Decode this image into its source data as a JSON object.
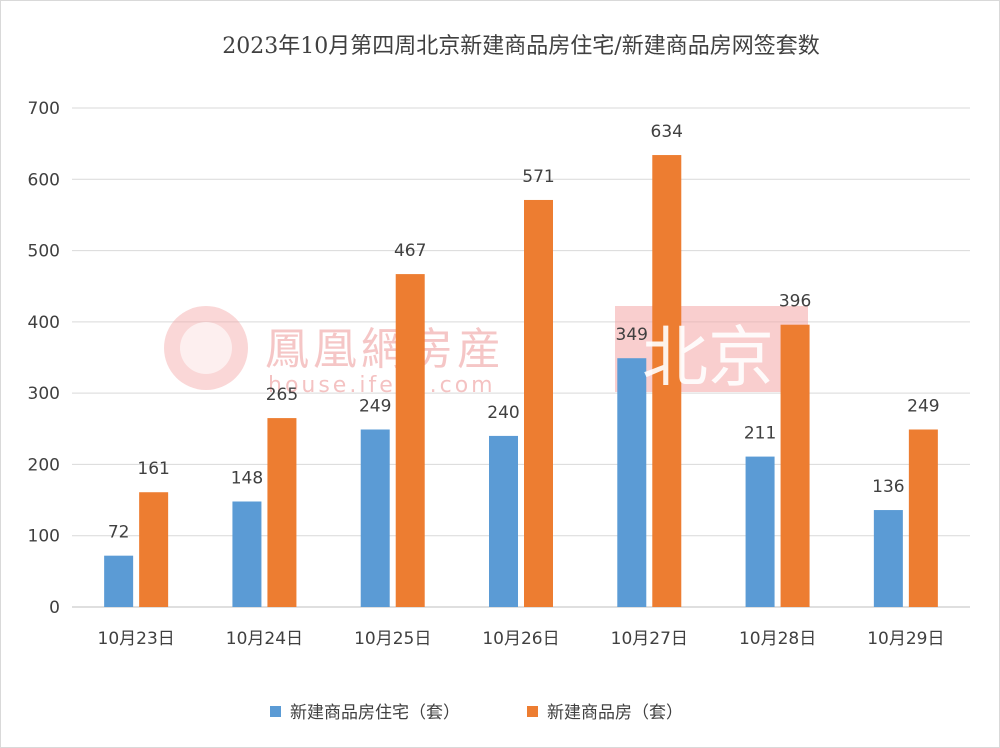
{
  "chart_data": {
    "type": "bar",
    "title": "2023年10月第四周北京新建商品房住宅/新建商品房网签套数",
    "categories": [
      "10月23日",
      "10月24日",
      "10月25日",
      "10月26日",
      "10月27日",
      "10月28日",
      "10月29日"
    ],
    "series": [
      {
        "name": "新建商品房住宅（套）",
        "color": "#5b9bd5",
        "values": [
          72,
          148,
          249,
          240,
          349,
          211,
          136
        ]
      },
      {
        "name": "新建商品房（套）",
        "color": "#ed7d31",
        "values": [
          161,
          265,
          467,
          571,
          634,
          396,
          249
        ]
      }
    ],
    "ylim": [
      0,
      700
    ],
    "yticks": [
      0,
      100,
      200,
      300,
      400,
      500,
      600,
      700
    ],
    "grid": true,
    "legend_position": "bottom",
    "xlabel": "",
    "ylabel": ""
  },
  "watermark": {
    "brand": "鳳凰網房産",
    "url": "house.ifeng.com",
    "city": "北京",
    "color": "#e8403f"
  }
}
